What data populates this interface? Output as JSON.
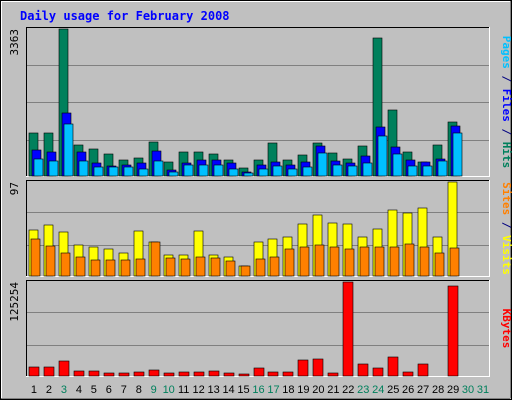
{
  "chart_data": [
    {
      "type": "bar",
      "title": "Daily usage for February 2008",
      "ylabel_parts": [
        {
          "text": "Pages",
          "color": "#00C0FF"
        },
        {
          "text": " / ",
          "color": "#000080"
        },
        {
          "text": "Files",
          "color": "#0000FF"
        },
        {
          "text": " / ",
          "color": "#000080"
        },
        {
          "text": "Hits",
          "color": "#00805C"
        }
      ],
      "ymax_label": "3363",
      "ylim": [
        0,
        3363
      ],
      "series": [
        {
          "name": "Hits",
          "color": "#00805C",
          "values": [
            980,
            980,
            3363,
            720,
            620,
            500,
            370,
            420,
            780,
            330,
            560,
            560,
            500,
            360,
            180,
            360,
            750,
            360,
            470,
            750,
            520,
            400,
            680,
            3150,
            1520,
            540,
            320,
            700,
            1240
          ]
        },
        {
          "name": "Files",
          "color": "#0000FF",
          "values": [
            590,
            560,
            1430,
            540,
            300,
            240,
            250,
            300,
            570,
            140,
            300,
            370,
            370,
            290,
            100,
            260,
            330,
            250,
            330,
            680,
            350,
            300,
            450,
            1120,
            660,
            370,
            320,
            380,
            1150
          ]
        },
        {
          "name": "Pages",
          "color": "#00C0FF",
          "values": [
            400,
            350,
            1200,
            350,
            200,
            200,
            200,
            160,
            350,
            100,
            250,
            250,
            250,
            160,
            60,
            160,
            220,
            160,
            200,
            520,
            260,
            240,
            300,
            920,
            500,
            240,
            220,
            340,
            990
          ]
        }
      ]
    },
    {
      "type": "bar",
      "ylabel_parts": [
        {
          "text": "Sites",
          "color": "#FF8000"
        },
        {
          "text": " / ",
          "color": "#000080"
        },
        {
          "text": "Visits",
          "color": "#FFFF00"
        }
      ],
      "ymax_label": "97",
      "ylim": [
        0,
        97
      ],
      "series": [
        {
          "name": "Visits",
          "color": "#FFFF00",
          "values": [
            47,
            53,
            45,
            32,
            30,
            28,
            24,
            46,
            35,
            22,
            22,
            46,
            22,
            20,
            10,
            35,
            38,
            40,
            54,
            63,
            55,
            54,
            40,
            48,
            68,
            65,
            70,
            40,
            97
          ]
        },
        {
          "name": "Sites",
          "color": "#FF8000",
          "values": [
            38,
            31,
            24,
            20,
            16,
            17,
            17,
            18,
            35,
            19,
            18,
            20,
            19,
            15,
            10,
            18,
            20,
            28,
            30,
            32,
            30,
            28,
            30,
            30,
            30,
            33,
            30,
            24,
            29
          ]
        }
      ]
    },
    {
      "type": "bar",
      "ylabel_parts": [
        {
          "text": "KBytes",
          "color": "#FF0000"
        }
      ],
      "ymax_label": "125254",
      "ylim": [
        0,
        125254
      ],
      "series": [
        {
          "name": "KBytes",
          "color": "#FF0000",
          "values": [
            12500,
            12500,
            20000,
            7000,
            6000,
            4000,
            4000,
            5000,
            8000,
            3500,
            5000,
            5000,
            6000,
            3500,
            3000,
            10000,
            5000,
            5000,
            21000,
            22000,
            4000,
            125254,
            16000,
            10000,
            25000,
            5000,
            16000,
            0,
            120000
          ]
        }
      ]
    }
  ],
  "x_labels": [
    {
      "label": "1",
      "color": "#000000"
    },
    {
      "label": "2",
      "color": "#000000"
    },
    {
      "label": "3",
      "color": "#00805C"
    },
    {
      "label": "4",
      "color": "#000000"
    },
    {
      "label": "5",
      "color": "#000000"
    },
    {
      "label": "6",
      "color": "#000000"
    },
    {
      "label": "7",
      "color": "#000000"
    },
    {
      "label": "8",
      "color": "#000000"
    },
    {
      "label": "9",
      "color": "#00805C"
    },
    {
      "label": "10",
      "color": "#00805C"
    },
    {
      "label": "11",
      "color": "#000000"
    },
    {
      "label": "12",
      "color": "#000000"
    },
    {
      "label": "13",
      "color": "#000000"
    },
    {
      "label": "14",
      "color": "#000000"
    },
    {
      "label": "15",
      "color": "#000000"
    },
    {
      "label": "16",
      "color": "#00805C"
    },
    {
      "label": "17",
      "color": "#00805C"
    },
    {
      "label": "18",
      "color": "#000000"
    },
    {
      "label": "19",
      "color": "#000000"
    },
    {
      "label": "20",
      "color": "#000000"
    },
    {
      "label": "21",
      "color": "#000000"
    },
    {
      "label": "22",
      "color": "#000000"
    },
    {
      "label": "23",
      "color": "#00805C"
    },
    {
      "label": "24",
      "color": "#00805C"
    },
    {
      "label": "25",
      "color": "#000000"
    },
    {
      "label": "26",
      "color": "#000000"
    },
    {
      "label": "27",
      "color": "#000000"
    },
    {
      "label": "28",
      "color": "#000000"
    },
    {
      "label": "29",
      "color": "#000000"
    },
    {
      "label": "30",
      "color": "#00805C"
    },
    {
      "label": "31",
      "color": "#00805C"
    }
  ],
  "colors": {
    "background": "#C0C0C0",
    "plot_background": "#C0C0C0",
    "title": "#0000FF",
    "gridline": "#808080"
  }
}
